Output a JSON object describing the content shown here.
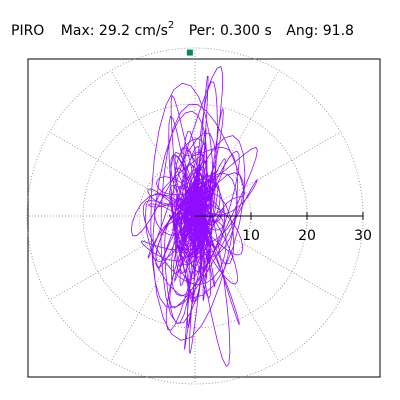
{
  "header": {
    "station": "PIRO",
    "max_label": "Max:",
    "max_value": "29.2",
    "max_unit": "cm/s",
    "max_unit_exp": "2",
    "per_label": "Per:",
    "per_value": "0.300 s",
    "ang_label": "Ang:",
    "ang_value": "91.8"
  },
  "chart_data": {
    "type": "polar-particle-motion",
    "max_amplitude": 29.2,
    "max_unit": "cm/s2",
    "period_s": 0.3,
    "azimuth_deg": 91.8,
    "radial_ticks": [
      10,
      20,
      30
    ],
    "r_max": 30,
    "grid": true,
    "trace_color": "#8b00ff",
    "max_marker_color": "#008b5a"
  }
}
